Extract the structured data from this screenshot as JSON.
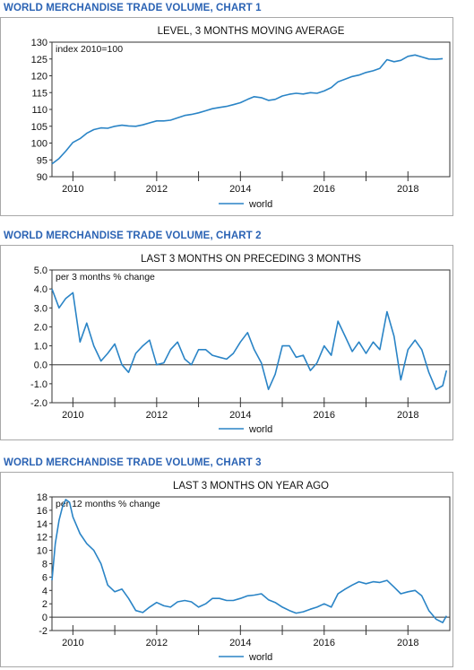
{
  "chart_data": [
    {
      "type": "line",
      "heading": "WORLD MERCHANDISE TRADE VOLUME, CHART 1",
      "title": "LEVEL, 3 MONTHS MOVING AVERAGE",
      "ylabel": "index 2010=100",
      "x_ticks": [
        "2010",
        "2012",
        "2014",
        "2016",
        "2018"
      ],
      "x_range": [
        2009.5,
        2019.0
      ],
      "ylim": [
        90,
        130
      ],
      "y_ticks": [
        "90",
        "95",
        "100",
        "105",
        "110",
        "115",
        "120",
        "125",
        "130"
      ],
      "zero_line": false,
      "legend": "bottom-center",
      "series": [
        {
          "name": "world",
          "color": "#2a84c6",
          "x": [
            2009.5,
            2009.67,
            2009.83,
            2010.0,
            2010.17,
            2010.33,
            2010.5,
            2010.67,
            2010.83,
            2011.0,
            2011.17,
            2011.33,
            2011.5,
            2011.67,
            2011.83,
            2012.0,
            2012.17,
            2012.33,
            2012.5,
            2012.67,
            2012.83,
            2013.0,
            2013.17,
            2013.33,
            2013.5,
            2013.67,
            2013.83,
            2014.0,
            2014.17,
            2014.33,
            2014.5,
            2014.67,
            2014.83,
            2015.0,
            2015.17,
            2015.33,
            2015.5,
            2015.67,
            2015.83,
            2016.0,
            2016.17,
            2016.33,
            2016.5,
            2016.67,
            2016.83,
            2017.0,
            2017.17,
            2017.33,
            2017.5,
            2017.67,
            2017.83,
            2018.0,
            2018.17,
            2018.33,
            2018.5,
            2018.67,
            2018.83
          ],
          "values": [
            93.8,
            95.4,
            97.6,
            100.2,
            101.3,
            102.9,
            104.0,
            104.5,
            104.4,
            105.0,
            105.3,
            105.1,
            105.0,
            105.4,
            106.0,
            106.6,
            106.6,
            106.8,
            107.5,
            108.2,
            108.5,
            109.0,
            109.6,
            110.2,
            110.6,
            110.9,
            111.4,
            112.0,
            113.0,
            113.8,
            113.5,
            112.7,
            113.0,
            114.0,
            114.5,
            114.8,
            114.6,
            115.0,
            114.8,
            115.5,
            116.5,
            118.2,
            119.0,
            119.8,
            120.2,
            121.0,
            121.5,
            122.2,
            124.8,
            124.2,
            124.6,
            125.8,
            126.2,
            125.6,
            125.0,
            124.9,
            125.1
          ]
        }
      ]
    },
    {
      "type": "line",
      "heading": "WORLD MERCHANDISE TRADE VOLUME, CHART 2",
      "title": "LAST 3 MONTHS ON PRECEDING 3 MONTHS",
      "ylabel": "per 3 months % change",
      "x_ticks": [
        "2010",
        "2012",
        "2014",
        "2016",
        "2018"
      ],
      "x_range": [
        2009.5,
        2019.0
      ],
      "ylim": [
        -2.0,
        5.0
      ],
      "y_ticks": [
        "5.0",
        "4.0",
        "3.0",
        "2.0",
        "1.0",
        "0.0",
        "-1.0",
        "-2.0"
      ],
      "zero_line": true,
      "legend": "bottom-center",
      "series": [
        {
          "name": "world",
          "color": "#2a84c6",
          "x": [
            2009.5,
            2009.67,
            2009.83,
            2010.0,
            2010.17,
            2010.33,
            2010.5,
            2010.67,
            2010.83,
            2011.0,
            2011.17,
            2011.33,
            2011.5,
            2011.67,
            2011.83,
            2012.0,
            2012.17,
            2012.33,
            2012.5,
            2012.67,
            2012.83,
            2013.0,
            2013.17,
            2013.33,
            2013.5,
            2013.67,
            2013.83,
            2014.0,
            2014.17,
            2014.33,
            2014.5,
            2014.67,
            2014.83,
            2015.0,
            2015.17,
            2015.33,
            2015.5,
            2015.67,
            2015.83,
            2016.0,
            2016.17,
            2016.33,
            2016.5,
            2016.67,
            2016.83,
            2017.0,
            2017.17,
            2017.33,
            2017.5,
            2017.67,
            2017.83,
            2018.0,
            2018.17,
            2018.33,
            2018.5,
            2018.67,
            2018.83,
            2018.92
          ],
          "values": [
            4.0,
            3.0,
            3.5,
            3.8,
            1.2,
            2.2,
            1.0,
            0.2,
            0.6,
            1.1,
            0.0,
            -0.4,
            0.6,
            1.0,
            1.3,
            0.0,
            0.1,
            0.8,
            1.2,
            0.3,
            0.0,
            0.8,
            0.8,
            0.5,
            0.4,
            0.3,
            0.6,
            1.2,
            1.7,
            0.8,
            0.1,
            -1.3,
            -0.5,
            1.0,
            1.0,
            0.4,
            0.5,
            -0.3,
            0.1,
            1.0,
            0.5,
            2.3,
            1.5,
            0.7,
            1.2,
            0.6,
            1.2,
            0.8,
            2.8,
            1.5,
            -0.8,
            0.8,
            1.3,
            0.8,
            -0.4,
            -1.3,
            -1.1,
            -0.3
          ]
        }
      ]
    },
    {
      "type": "line",
      "heading": "WORLD MERCHANDISE TRADE VOLUME, CHART 3",
      "title": "LAST 3 MONTHS ON YEAR AGO",
      "ylabel": "per 12 months % change",
      "x_ticks": [
        "2010",
        "2012",
        "2014",
        "2016",
        "2018"
      ],
      "x_range": [
        2009.5,
        2019.0
      ],
      "ylim": [
        -2,
        18
      ],
      "y_ticks": [
        "18",
        "16",
        "14",
        "12",
        "10",
        "8",
        "6",
        "4",
        "2",
        "0",
        "-2"
      ],
      "zero_line": true,
      "legend": "bottom-center",
      "series": [
        {
          "name": "world",
          "color": "#2a84c6",
          "x": [
            2009.5,
            2009.58,
            2009.67,
            2009.75,
            2009.83,
            2009.92,
            2010.0,
            2010.17,
            2010.33,
            2010.5,
            2010.67,
            2010.83,
            2011.0,
            2011.17,
            2011.33,
            2011.5,
            2011.67,
            2011.83,
            2012.0,
            2012.17,
            2012.33,
            2012.5,
            2012.67,
            2012.83,
            2013.0,
            2013.17,
            2013.33,
            2013.5,
            2013.67,
            2013.83,
            2014.0,
            2014.17,
            2014.33,
            2014.5,
            2014.67,
            2014.83,
            2015.0,
            2015.17,
            2015.33,
            2015.5,
            2015.67,
            2015.83,
            2016.0,
            2016.17,
            2016.33,
            2016.5,
            2016.67,
            2016.83,
            2017.0,
            2017.17,
            2017.33,
            2017.5,
            2017.67,
            2017.83,
            2018.0,
            2018.17,
            2018.33,
            2018.5,
            2018.67,
            2018.83,
            2018.92
          ],
          "values": [
            5.5,
            11.0,
            14.5,
            16.5,
            17.6,
            17.2,
            15.0,
            12.5,
            11.0,
            10.0,
            8.0,
            4.8,
            3.8,
            4.2,
            2.8,
            1.0,
            0.7,
            1.5,
            2.2,
            1.7,
            1.5,
            2.3,
            2.5,
            2.3,
            1.5,
            2.0,
            2.8,
            2.8,
            2.5,
            2.5,
            2.8,
            3.2,
            3.3,
            3.5,
            2.6,
            2.2,
            1.5,
            1.0,
            0.6,
            0.8,
            1.2,
            1.5,
            2.0,
            1.5,
            3.5,
            4.2,
            4.8,
            5.3,
            5.0,
            5.3,
            5.2,
            5.5,
            4.5,
            3.5,
            3.8,
            4.0,
            3.2,
            1.0,
            -0.3,
            -0.8,
            0.2
          ]
        }
      ]
    }
  ]
}
